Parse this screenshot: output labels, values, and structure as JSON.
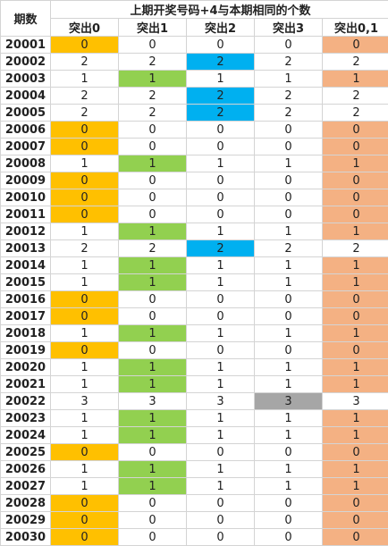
{
  "table": {
    "corner_label": "期数",
    "title": "上期开奖号码+4与本期相同的个数",
    "columns": [
      "突出0",
      "突出1",
      "突出2",
      "突出3",
      "突出0,1"
    ],
    "colors": {
      "orange": "#ffc000",
      "green": "#92d050",
      "blue": "#00b0f0",
      "gray": "#a6a6a6",
      "salmon": "#f4b183"
    },
    "rows": [
      {
        "period": "20001",
        "values": [
          "0",
          "0",
          "0",
          "0",
          "0"
        ],
        "hl": [
          "orange",
          "",
          "",
          "",
          "salmon"
        ]
      },
      {
        "period": "20002",
        "values": [
          "2",
          "2",
          "2",
          "2",
          "2"
        ],
        "hl": [
          "",
          "",
          "blue",
          "",
          ""
        ]
      },
      {
        "period": "20003",
        "values": [
          "1",
          "1",
          "1",
          "1",
          "1"
        ],
        "hl": [
          "",
          "green",
          "",
          "",
          "salmon"
        ]
      },
      {
        "period": "20004",
        "values": [
          "2",
          "2",
          "2",
          "2",
          "2"
        ],
        "hl": [
          "",
          "",
          "blue",
          "",
          ""
        ]
      },
      {
        "period": "20005",
        "values": [
          "2",
          "2",
          "2",
          "2",
          "2"
        ],
        "hl": [
          "",
          "",
          "blue",
          "",
          ""
        ]
      },
      {
        "period": "20006",
        "values": [
          "0",
          "0",
          "0",
          "0",
          "0"
        ],
        "hl": [
          "orange",
          "",
          "",
          "",
          "salmon"
        ]
      },
      {
        "period": "20007",
        "values": [
          "0",
          "0",
          "0",
          "0",
          "0"
        ],
        "hl": [
          "orange",
          "",
          "",
          "",
          "salmon"
        ]
      },
      {
        "period": "20008",
        "values": [
          "1",
          "1",
          "1",
          "1",
          "1"
        ],
        "hl": [
          "",
          "green",
          "",
          "",
          "salmon"
        ]
      },
      {
        "period": "20009",
        "values": [
          "0",
          "0",
          "0",
          "0",
          "0"
        ],
        "hl": [
          "orange",
          "",
          "",
          "",
          "salmon"
        ]
      },
      {
        "period": "20010",
        "values": [
          "0",
          "0",
          "0",
          "0",
          "0"
        ],
        "hl": [
          "orange",
          "",
          "",
          "",
          "salmon"
        ]
      },
      {
        "period": "20011",
        "values": [
          "0",
          "0",
          "0",
          "0",
          "0"
        ],
        "hl": [
          "orange",
          "",
          "",
          "",
          "salmon"
        ]
      },
      {
        "period": "20012",
        "values": [
          "1",
          "1",
          "1",
          "1",
          "1"
        ],
        "hl": [
          "",
          "green",
          "",
          "",
          "salmon"
        ]
      },
      {
        "period": "20013",
        "values": [
          "2",
          "2",
          "2",
          "2",
          "2"
        ],
        "hl": [
          "",
          "",
          "blue",
          "",
          ""
        ]
      },
      {
        "period": "20014",
        "values": [
          "1",
          "1",
          "1",
          "1",
          "1"
        ],
        "hl": [
          "",
          "green",
          "",
          "",
          "salmon"
        ]
      },
      {
        "period": "20015",
        "values": [
          "1",
          "1",
          "1",
          "1",
          "1"
        ],
        "hl": [
          "",
          "green",
          "",
          "",
          "salmon"
        ]
      },
      {
        "period": "20016",
        "values": [
          "0",
          "0",
          "0",
          "0",
          "0"
        ],
        "hl": [
          "orange",
          "",
          "",
          "",
          "salmon"
        ]
      },
      {
        "period": "20017",
        "values": [
          "0",
          "0",
          "0",
          "0",
          "0"
        ],
        "hl": [
          "orange",
          "",
          "",
          "",
          "salmon"
        ]
      },
      {
        "period": "20018",
        "values": [
          "1",
          "1",
          "1",
          "1",
          "1"
        ],
        "hl": [
          "",
          "green",
          "",
          "",
          "salmon"
        ]
      },
      {
        "period": "20019",
        "values": [
          "0",
          "0",
          "0",
          "0",
          "0"
        ],
        "hl": [
          "orange",
          "",
          "",
          "",
          "salmon"
        ]
      },
      {
        "period": "20020",
        "values": [
          "1",
          "1",
          "1",
          "1",
          "1"
        ],
        "hl": [
          "",
          "green",
          "",
          "",
          "salmon"
        ]
      },
      {
        "period": "20021",
        "values": [
          "1",
          "1",
          "1",
          "1",
          "1"
        ],
        "hl": [
          "",
          "green",
          "",
          "",
          "salmon"
        ]
      },
      {
        "period": "20022",
        "values": [
          "3",
          "3",
          "3",
          "3",
          "3"
        ],
        "hl": [
          "",
          "",
          "",
          "gray",
          ""
        ]
      },
      {
        "period": "20023",
        "values": [
          "1",
          "1",
          "1",
          "1",
          "1"
        ],
        "hl": [
          "",
          "green",
          "",
          "",
          "salmon"
        ]
      },
      {
        "period": "20024",
        "values": [
          "1",
          "1",
          "1",
          "1",
          "1"
        ],
        "hl": [
          "",
          "green",
          "",
          "",
          "salmon"
        ]
      },
      {
        "period": "20025",
        "values": [
          "0",
          "0",
          "0",
          "0",
          "0"
        ],
        "hl": [
          "orange",
          "",
          "",
          "",
          "salmon"
        ]
      },
      {
        "period": "20026",
        "values": [
          "1",
          "1",
          "1",
          "1",
          "1"
        ],
        "hl": [
          "",
          "green",
          "",
          "",
          "salmon"
        ]
      },
      {
        "period": "20027",
        "values": [
          "1",
          "1",
          "1",
          "1",
          "1"
        ],
        "hl": [
          "",
          "green",
          "",
          "",
          "salmon"
        ]
      },
      {
        "period": "20028",
        "values": [
          "0",
          "0",
          "0",
          "0",
          "0"
        ],
        "hl": [
          "orange",
          "",
          "",
          "",
          "salmon"
        ]
      },
      {
        "period": "20029",
        "values": [
          "0",
          "0",
          "0",
          "0",
          "0"
        ],
        "hl": [
          "orange",
          "",
          "",
          "",
          "salmon"
        ]
      },
      {
        "period": "20030",
        "values": [
          "0",
          "0",
          "0",
          "0",
          "0"
        ],
        "hl": [
          "orange",
          "",
          "",
          "",
          "salmon"
        ]
      }
    ]
  }
}
